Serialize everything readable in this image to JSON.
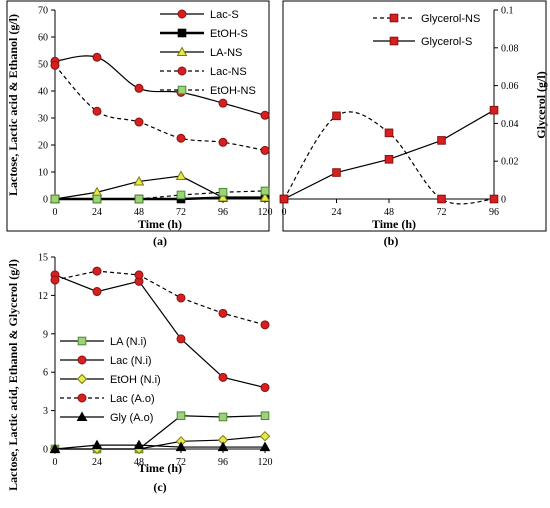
{
  "chart_data": [
    {
      "panel": "(a)",
      "type": "line",
      "xlabel": "Time (h)",
      "ylabel": "Lactose, Lactic acid & Ethanol (g/l)",
      "x": [
        0,
        24,
        48,
        72,
        96,
        120
      ],
      "xlim": [
        0,
        120
      ],
      "xticks": [
        "0",
        "24",
        "48",
        "72",
        "96",
        "120"
      ],
      "ylim": [
        0,
        70
      ],
      "yticks": [
        "0",
        "10",
        "20",
        "30",
        "40",
        "50",
        "60",
        "70"
      ],
      "legend_position": "top-right",
      "series": [
        {
          "name": "Lac-S",
          "values": [
            51,
            52.5,
            41,
            39.5,
            35.5,
            31
          ],
          "color": "#d62020",
          "marker": "circle",
          "dash": "solid",
          "smooth": true
        },
        {
          "name": "EtOH-S",
          "values": [
            0,
            0,
            0,
            0,
            0.5,
            0.5
          ],
          "color": "#000000",
          "marker": "square",
          "dash": "solid",
          "smooth": false,
          "bold": true
        },
        {
          "name": "LA-NS",
          "values": [
            0,
            2.5,
            6.5,
            8.5,
            0.5,
            0.5
          ],
          "color": "#e8e84a",
          "marker": "triangle",
          "dash": "solid",
          "smooth": false
        },
        {
          "name": "Lac-NS",
          "values": [
            49.5,
            32.5,
            28.5,
            22.5,
            21,
            18
          ],
          "color": "#d62020",
          "marker": "circle",
          "dash": "dashed",
          "smooth": true
        },
        {
          "name": "EtOH-NS",
          "values": [
            0,
            0,
            0,
            1.5,
            2.5,
            3
          ],
          "color": "#9bd27a",
          "marker": "square",
          "dash": "dashed",
          "smooth": false
        }
      ]
    },
    {
      "panel": "(b)",
      "type": "line",
      "xlabel": "Time (h)",
      "ylabel": "Glycerol (g/l)",
      "x": [
        0,
        24,
        48,
        72,
        96
      ],
      "xlim": [
        0,
        96
      ],
      "xticks": [
        "0",
        "24",
        "48",
        "72",
        "96"
      ],
      "ylim": [
        0,
        0.1
      ],
      "yticks": [
        "0",
        "0.02",
        "0.04",
        "0.06",
        "0.08",
        "0.1"
      ],
      "yaxis_side": "right",
      "legend_position": "top-right",
      "series": [
        {
          "name": "Glycerol-NS",
          "values": [
            0,
            0.044,
            0.035,
            0,
            0
          ],
          "color": "#d62020",
          "marker": "square",
          "dash": "dashed",
          "smooth": true
        },
        {
          "name": "Glycerol-S",
          "values": [
            0,
            0.014,
            0.021,
            0.031,
            0.047
          ],
          "color": "#d62020",
          "marker": "square",
          "dash": "solid",
          "smooth": false
        }
      ]
    },
    {
      "panel": "(c)",
      "type": "line",
      "xlabel": "Time (h)",
      "ylabel": "Lactose, Lactic acid, Ethanol & Glycerol (g/l)",
      "x": [
        0,
        24,
        48,
        72,
        96,
        120
      ],
      "xlim": [
        0,
        120
      ],
      "xticks": [
        "0",
        "24",
        "48",
        "72",
        "96",
        "120"
      ],
      "ylim": [
        0,
        15
      ],
      "yticks": [
        "0",
        "3",
        "6",
        "9",
        "12",
        "15"
      ],
      "legend_position": "left-middle",
      "series": [
        {
          "name": "LA (N.i)",
          "values": [
            0,
            0,
            0,
            2.6,
            2.5,
            2.6
          ],
          "color": "#9bd27a",
          "marker": "square",
          "dash": "solid",
          "smooth": false
        },
        {
          "name": "Lac (N.i)",
          "values": [
            13.6,
            12.3,
            13.1,
            8.6,
            5.6,
            4.8
          ],
          "color": "#d62020",
          "marker": "circle",
          "dash": "solid",
          "smooth": false
        },
        {
          "name": "EtOH (N.i)",
          "values": [
            0,
            0,
            0,
            0.6,
            0.7,
            1.0
          ],
          "color": "#e8e84a",
          "marker": "diamond",
          "dash": "solid",
          "smooth": false
        },
        {
          "name": "Lac (A.o)",
          "values": [
            13.2,
            13.9,
            13.6,
            11.8,
            10.6,
            9.7
          ],
          "color": "#d62020",
          "marker": "circle",
          "dash": "dashed",
          "smooth": false
        },
        {
          "name": "Gly (A.o)",
          "values": [
            0,
            0.3,
            0.3,
            0.15,
            0.15,
            0.15
          ],
          "color": "#000000",
          "marker": "triangle",
          "dash": "solid",
          "smooth": false
        }
      ]
    }
  ]
}
